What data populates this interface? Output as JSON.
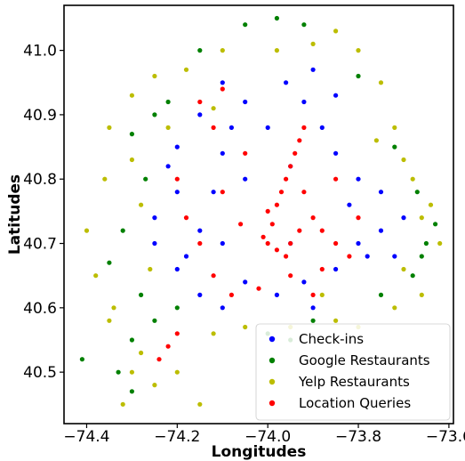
{
  "chart_data": {
    "type": "scatter",
    "title": "",
    "xlabel": "Longitudes",
    "ylabel": "Latitudes",
    "xlim": [
      -74.45,
      -73.59
    ],
    "ylim": [
      40.42,
      41.07
    ],
    "xticks": [
      -74.4,
      -74.2,
      -74.0,
      -73.8,
      -73.6
    ],
    "yticks": [
      40.5,
      40.6,
      40.7,
      40.8,
      40.9,
      41.0
    ],
    "xtick_labels": [
      "−74.4",
      "−74.2",
      "−74.0",
      "−73.8",
      "−73.6"
    ],
    "ytick_labels": [
      "40.5",
      "40.6",
      "40.7",
      "40.8",
      "40.9",
      "41.0"
    ],
    "grid": false,
    "legend_position": "bottom-right",
    "series": [
      {
        "name": "Check-ins",
        "color": "#0000ff",
        "points": [
          [
            -74.1,
            40.95
          ],
          [
            -74.05,
            40.92
          ],
          [
            -74.15,
            40.9
          ],
          [
            -74.2,
            40.85
          ],
          [
            -74.1,
            40.84
          ],
          [
            -74.05,
            40.8
          ],
          [
            -74.2,
            40.78
          ],
          [
            -74.25,
            40.74
          ],
          [
            -74.15,
            40.72
          ],
          [
            -74.1,
            40.7
          ],
          [
            -74.2,
            40.66
          ],
          [
            -74.15,
            40.62
          ],
          [
            -74.1,
            40.6
          ],
          [
            -74.05,
            40.64
          ],
          [
            -73.98,
            40.62
          ],
          [
            -73.92,
            40.64
          ],
          [
            -73.9,
            40.6
          ],
          [
            -73.85,
            40.66
          ],
          [
            -73.8,
            40.7
          ],
          [
            -73.75,
            40.72
          ],
          [
            -73.7,
            40.74
          ],
          [
            -73.75,
            40.78
          ],
          [
            -73.8,
            40.8
          ],
          [
            -73.85,
            40.84
          ],
          [
            -73.88,
            40.88
          ],
          [
            -73.92,
            40.92
          ],
          [
            -73.96,
            40.95
          ],
          [
            -73.9,
            40.97
          ],
          [
            -73.85,
            40.93
          ],
          [
            -74.0,
            40.88
          ],
          [
            -74.08,
            40.88
          ],
          [
            -74.22,
            40.82
          ],
          [
            -74.25,
            40.7
          ],
          [
            -74.18,
            40.68
          ],
          [
            -73.95,
            40.7
          ],
          [
            -73.82,
            40.76
          ],
          [
            -73.78,
            40.68
          ],
          [
            -73.72,
            40.68
          ],
          [
            -74.12,
            40.78
          ],
          [
            -73.95,
            40.82
          ]
        ]
      },
      {
        "name": "Google Restaurants",
        "color": "#008000",
        "points": [
          [
            -74.3,
            40.87
          ],
          [
            -74.25,
            40.9
          ],
          [
            -74.27,
            40.8
          ],
          [
            -74.32,
            40.72
          ],
          [
            -74.28,
            40.62
          ],
          [
            -74.3,
            40.55
          ],
          [
            -74.33,
            40.5
          ],
          [
            -74.41,
            40.52
          ],
          [
            -74.3,
            40.47
          ],
          [
            -74.05,
            41.04
          ],
          [
            -73.98,
            41.05
          ],
          [
            -73.92,
            41.04
          ],
          [
            -73.67,
            40.78
          ],
          [
            -73.63,
            40.73
          ],
          [
            -73.66,
            40.68
          ],
          [
            -73.68,
            40.65
          ],
          [
            -73.75,
            40.62
          ],
          [
            -73.9,
            40.58
          ],
          [
            -74.0,
            40.56
          ],
          [
            -74.2,
            40.6
          ],
          [
            -74.22,
            40.92
          ],
          [
            -73.72,
            40.85
          ],
          [
            -73.8,
            40.96
          ],
          [
            -74.15,
            41.0
          ],
          [
            -73.65,
            40.7
          ],
          [
            -74.25,
            40.58
          ],
          [
            -73.95,
            40.55
          ],
          [
            -74.35,
            40.67
          ]
        ]
      },
      {
        "name": "Yelp Restaurants",
        "color": "#bcbd00",
        "points": [
          [
            -74.25,
            40.96
          ],
          [
            -74.3,
            40.93
          ],
          [
            -74.35,
            40.88
          ],
          [
            -74.36,
            40.8
          ],
          [
            -74.4,
            40.72
          ],
          [
            -74.38,
            40.65
          ],
          [
            -74.35,
            40.58
          ],
          [
            -74.3,
            40.5
          ],
          [
            -74.32,
            40.45
          ],
          [
            -74.25,
            40.48
          ],
          [
            -74.2,
            40.5
          ],
          [
            -74.15,
            40.45
          ],
          [
            -74.1,
            41.0
          ],
          [
            -73.98,
            41.0
          ],
          [
            -73.85,
            41.03
          ],
          [
            -73.8,
            41.0
          ],
          [
            -73.75,
            40.95
          ],
          [
            -73.72,
            40.88
          ],
          [
            -73.7,
            40.83
          ],
          [
            -73.68,
            40.8
          ],
          [
            -73.64,
            40.76
          ],
          [
            -73.62,
            40.7
          ],
          [
            -73.66,
            40.62
          ],
          [
            -73.72,
            40.6
          ],
          [
            -73.8,
            40.57
          ],
          [
            -73.85,
            40.58
          ],
          [
            -73.95,
            40.57
          ],
          [
            -74.05,
            40.57
          ],
          [
            -74.12,
            40.56
          ],
          [
            -74.28,
            40.53
          ],
          [
            -74.22,
            40.88
          ],
          [
            -74.28,
            40.76
          ],
          [
            -74.26,
            40.66
          ],
          [
            -73.76,
            40.86
          ],
          [
            -73.7,
            40.66
          ],
          [
            -74.18,
            40.97
          ],
          [
            -73.9,
            41.01
          ],
          [
            -74.34,
            40.6
          ],
          [
            -73.66,
            40.74
          ],
          [
            -74.3,
            40.83
          ],
          [
            -74.12,
            40.91
          ],
          [
            -73.88,
            40.62
          ]
        ]
      },
      {
        "name": "Location Queries",
        "color": "#ff0000",
        "points": [
          [
            -74.0,
            40.75
          ],
          [
            -73.99,
            40.73
          ],
          [
            -73.98,
            40.76
          ],
          [
            -73.97,
            40.78
          ],
          [
            -73.96,
            40.8
          ],
          [
            -73.95,
            40.82
          ],
          [
            -73.94,
            40.84
          ],
          [
            -73.93,
            40.86
          ],
          [
            -73.92,
            40.88
          ],
          [
            -74.01,
            40.71
          ],
          [
            -74.0,
            40.7
          ],
          [
            -73.98,
            40.69
          ],
          [
            -73.96,
            40.68
          ],
          [
            -73.95,
            40.7
          ],
          [
            -73.93,
            40.72
          ],
          [
            -73.9,
            40.74
          ],
          [
            -73.88,
            40.72
          ],
          [
            -73.85,
            40.7
          ],
          [
            -73.82,
            40.68
          ],
          [
            -73.95,
            40.65
          ],
          [
            -73.9,
            40.62
          ],
          [
            -74.02,
            40.63
          ],
          [
            -74.08,
            40.62
          ],
          [
            -74.12,
            40.65
          ],
          [
            -74.15,
            40.7
          ],
          [
            -74.18,
            40.74
          ],
          [
            -74.1,
            40.78
          ],
          [
            -74.05,
            40.84
          ],
          [
            -74.12,
            40.88
          ],
          [
            -74.15,
            40.92
          ],
          [
            -74.2,
            40.8
          ],
          [
            -74.24,
            40.52
          ],
          [
            -74.22,
            40.54
          ],
          [
            -74.2,
            40.56
          ],
          [
            -73.85,
            40.8
          ],
          [
            -73.8,
            40.74
          ],
          [
            -73.92,
            40.78
          ],
          [
            -74.06,
            40.73
          ],
          [
            -73.88,
            40.66
          ],
          [
            -74.1,
            40.94
          ]
        ]
      }
    ]
  }
}
